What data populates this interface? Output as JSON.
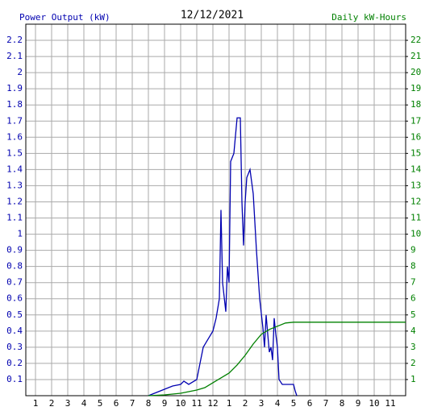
{
  "chart_data": {
    "type": "line",
    "title": "12/12/2021",
    "y_label": "Power Output (kW)",
    "y2_label": "Daily kW-Hours",
    "xlim": [
      0.4,
      23.95
    ],
    "xticks": [
      1,
      2,
      3,
      4,
      5,
      6,
      7,
      8,
      9,
      10,
      11,
      12,
      {
        "value": 13,
        "label": "1"
      },
      {
        "value": 14,
        "label": "2"
      },
      {
        "value": 15,
        "label": "3"
      },
      {
        "value": 16,
        "label": "4"
      },
      {
        "value": 17,
        "label": "5"
      },
      {
        "value": 18,
        "label": "6"
      },
      {
        "value": 19,
        "label": "7"
      },
      {
        "value": 20,
        "label": "8"
      },
      {
        "value": 21,
        "label": "9"
      },
      {
        "value": 22,
        "label": "10"
      },
      {
        "value": 23,
        "label": "11"
      }
    ],
    "ylim": [
      0,
      2.3
    ],
    "yticks": [
      0.1,
      0.2,
      0.3,
      0.4,
      0.5,
      0.6,
      0.7,
      0.8,
      0.9,
      1.0,
      1.1,
      1.2,
      1.3,
      1.4,
      1.5,
      1.6,
      1.7,
      1.8,
      1.9,
      2.0,
      2.1,
      2.2
    ],
    "y2lim": [
      0,
      23
    ],
    "y2ticks": [
      1,
      2,
      3,
      4,
      5,
      6,
      7,
      8,
      9,
      10,
      11,
      12,
      13,
      14,
      15,
      16,
      17,
      18,
      19,
      20,
      21,
      22
    ],
    "grid": true,
    "series": [
      {
        "name": "Power Output (kW)",
        "color": "#0000b0",
        "x": [
          8.0,
          8.5,
          9.0,
          9.5,
          10.0,
          10.2,
          10.5,
          11.0,
          11.2,
          11.4,
          11.7,
          12.0,
          12.2,
          12.4,
          12.5,
          12.6,
          12.8,
          12.9,
          13.0,
          13.1,
          13.3,
          13.5,
          13.7,
          13.8,
          13.9,
          14.0,
          14.1,
          14.3,
          14.5,
          14.7,
          14.9,
          15.1,
          15.2,
          15.3,
          15.4,
          15.5,
          15.6,
          15.7,
          15.8,
          15.9,
          16.0,
          16.1,
          16.3,
          17.0,
          17.1,
          17.2
        ],
        "values": [
          0,
          0.02,
          0.04,
          0.06,
          0.07,
          0.09,
          0.07,
          0.1,
          0.2,
          0.3,
          0.35,
          0.4,
          0.48,
          0.6,
          1.15,
          0.7,
          0.52,
          0.8,
          0.7,
          1.45,
          1.5,
          1.72,
          1.72,
          1.2,
          0.93,
          1.2,
          1.35,
          1.4,
          1.25,
          0.9,
          0.6,
          0.42,
          0.3,
          0.5,
          0.38,
          0.27,
          0.3,
          0.22,
          0.48,
          0.38,
          0.3,
          0.1,
          0.07,
          0.07,
          0.03,
          0
        ]
      },
      {
        "name": "Daily kW-Hours",
        "color": "#008000",
        "axis": "y2",
        "x": [
          8,
          9,
          10,
          11,
          11.5,
          12,
          12.5,
          13,
          13.5,
          14,
          14.5,
          15,
          15.5,
          16,
          16.5,
          17,
          23.95
        ],
        "values": [
          0,
          0.05,
          0.15,
          0.35,
          0.5,
          0.8,
          1.1,
          1.4,
          1.9,
          2.5,
          3.2,
          3.8,
          4.1,
          4.3,
          4.5,
          4.55,
          4.55
        ]
      }
    ]
  }
}
